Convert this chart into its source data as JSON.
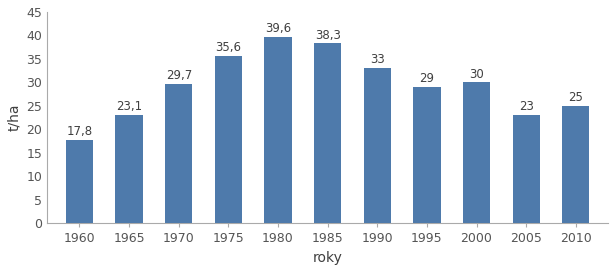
{
  "categories": [
    "1960",
    "1965",
    "1970",
    "1975",
    "1980",
    "1985",
    "1990",
    "1995",
    "2000",
    "2005",
    "2010"
  ],
  "values": [
    17.8,
    23.1,
    29.7,
    35.6,
    39.6,
    38.3,
    33,
    29,
    30,
    23,
    25
  ],
  "labels": [
    "17,8",
    "23,1",
    "29,7",
    "35,6",
    "39,6",
    "38,3",
    "33",
    "29",
    "30",
    "23",
    "25"
  ],
  "bar_color": "#4e7aab",
  "xlabel": "roky",
  "ylabel": "t/ha",
  "ylim": [
    0,
    45
  ],
  "yticks": [
    0,
    5,
    10,
    15,
    20,
    25,
    30,
    35,
    40,
    45
  ],
  "background_color": "#ffffff",
  "xlabel_fontsize": 10,
  "ylabel_fontsize": 10,
  "tick_fontsize": 9,
  "label_fontsize": 8.5,
  "bar_width": 0.55,
  "spine_color": "#aaaaaa",
  "tick_color": "#555555",
  "label_color": "#404040"
}
